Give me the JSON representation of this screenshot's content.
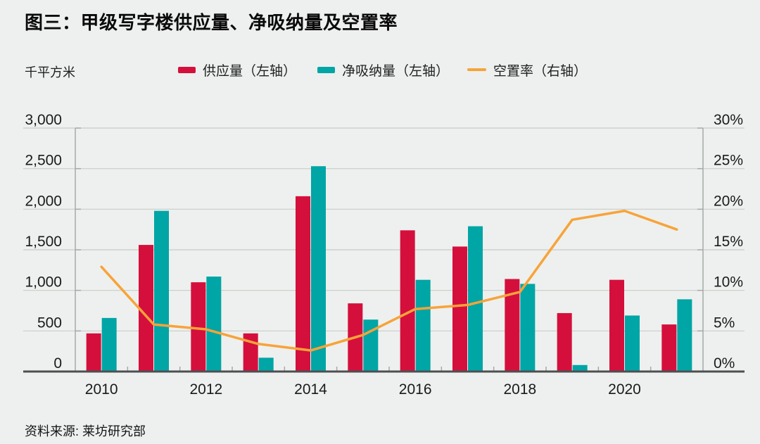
{
  "source": "资料来源: 莱坊研究部",
  "colors": {
    "background": "#edf0ee",
    "grid": "#c9cdc9",
    "axis_light": "#a6aaa7",
    "axis_dark": "#4e4f52",
    "text": "#1a1a1a"
  },
  "chart_data": {
    "type": "bar",
    "subtype": "grouped-bars-with-line",
    "title": "图三：甲级写字楼供应量、净吸纳量及空置率",
    "categories": [
      "2010",
      "2011",
      "2012",
      "2013",
      "2014",
      "2015",
      "2016",
      "2017",
      "2018",
      "2019",
      "2020",
      "2021"
    ],
    "series": [
      {
        "name": "供应量（左轴）",
        "type": "bar",
        "axis": "left",
        "color": "#d50f3c",
        "values": [
          470,
          1560,
          1100,
          470,
          2160,
          840,
          1740,
          1540,
          1140,
          720,
          1130,
          580
        ]
      },
      {
        "name": "净吸纳量（左轴）",
        "type": "bar",
        "axis": "left",
        "color": "#00a5a6",
        "values": [
          660,
          1980,
          1170,
          170,
          2530,
          640,
          1130,
          1790,
          1080,
          80,
          690,
          890
        ]
      },
      {
        "name": "空置率（右轴）",
        "type": "line",
        "axis": "right",
        "color": "#f8a339",
        "values": [
          12.9,
          5.8,
          5.2,
          3.4,
          2.6,
          4.5,
          7.7,
          8.2,
          9.8,
          18.7,
          19.8,
          17.5
        ]
      }
    ],
    "left_axis": {
      "label": "千平方米",
      "min": 0,
      "max": 3000,
      "step": 500,
      "tick_labels": [
        "0",
        "500",
        "1,000",
        "1,500",
        "2,000",
        "2,500",
        "3,000"
      ]
    },
    "right_axis": {
      "min": 0,
      "max": 30,
      "step": 5,
      "tick_labels": [
        "0%",
        "5%",
        "10%",
        "15%",
        "20%",
        "25%",
        "30%"
      ]
    },
    "x_axis": {
      "labeled_ticks": [
        "2010",
        "2012",
        "2014",
        "2016",
        "2018",
        "2020"
      ],
      "label_every": 2
    },
    "grid": true,
    "legend_position": "top"
  }
}
